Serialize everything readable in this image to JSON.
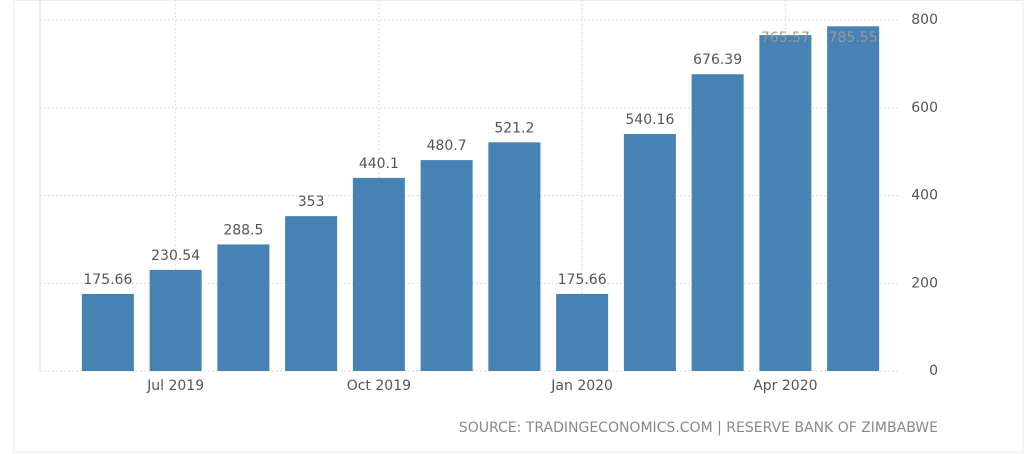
{
  "chart_data": {
    "type": "bar",
    "categories": [
      null,
      "Jul 2019",
      null,
      null,
      "Oct 2019",
      null,
      null,
      "Jan 2020",
      null,
      null,
      "Apr 2020",
      null
    ],
    "values": [
      175.66,
      230.54,
      288.5,
      353,
      440.1,
      480.7,
      521.2,
      175.66,
      540.16,
      676.39,
      765.57,
      785.55
    ],
    "color": "#4682b4",
    "ylim": [
      0,
      800
    ],
    "yticks": [
      0,
      200,
      400,
      600,
      800
    ],
    "grid": true,
    "source": "SOURCE: TRADINGECONOMICS.COM | RESERVE BANK OF ZIMBABWE"
  }
}
